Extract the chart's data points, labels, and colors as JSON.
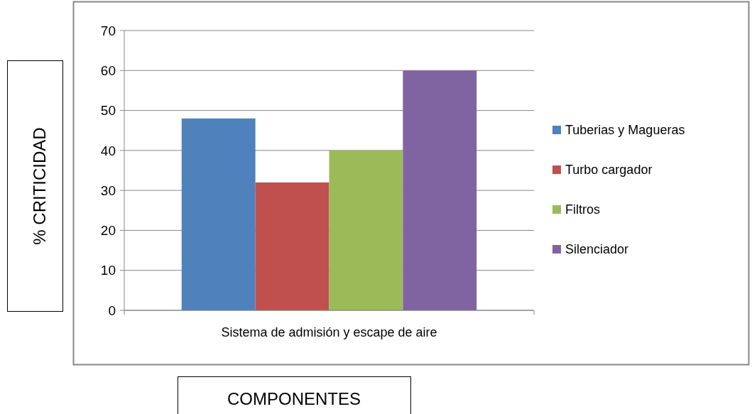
{
  "chart_data": {
    "type": "bar",
    "xlabel": "COMPONENTES",
    "ylabel": "% CRITICIDAD",
    "categories": [
      "Sistema de admisión y escape de aire"
    ],
    "series": [
      {
        "name": "Tuberias y Magueras",
        "color": "#4f81bd",
        "values": [
          48
        ]
      },
      {
        "name": "Turbo cargador",
        "color": "#c0504d",
        "values": [
          32
        ]
      },
      {
        "name": "Filtros",
        "color": "#9bbb59",
        "values": [
          40
        ]
      },
      {
        "name": "Silenciador",
        "color": "#8064a2",
        "values": [
          60
        ]
      }
    ],
    "ylim": [
      0,
      70
    ],
    "yticks": [
      0,
      10,
      20,
      30,
      40,
      50,
      60,
      70
    ],
    "grid": "y",
    "legend": "right"
  }
}
